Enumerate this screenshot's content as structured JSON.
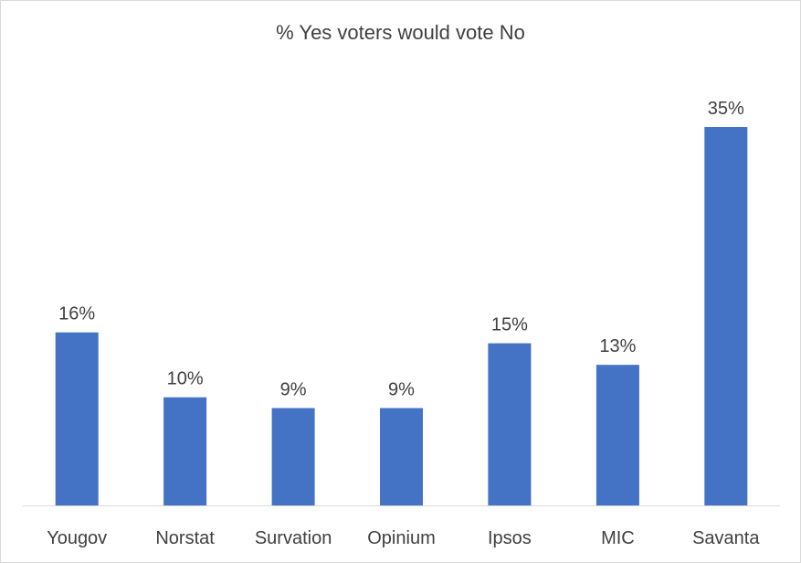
{
  "chart_data": {
    "type": "bar",
    "title": "% Yes voters would vote No",
    "categories": [
      "Yougov",
      "Norstat",
      "Survation",
      "Opinium",
      "Ipsos",
      "MIC",
      "Savanta"
    ],
    "values": [
      16,
      10,
      9,
      9,
      15,
      13,
      35
    ],
    "data_labels": [
      "16%",
      "10%",
      "9%",
      "9%",
      "15%",
      "13%",
      "35%"
    ],
    "unit": "%",
    "ylim": [
      0,
      35
    ],
    "grid": false,
    "legend": "none",
    "xlabel": "",
    "ylabel": "",
    "colors": {
      "bar": "#4472c4",
      "text": "#404040",
      "axis": "#d9d9d9"
    }
  }
}
